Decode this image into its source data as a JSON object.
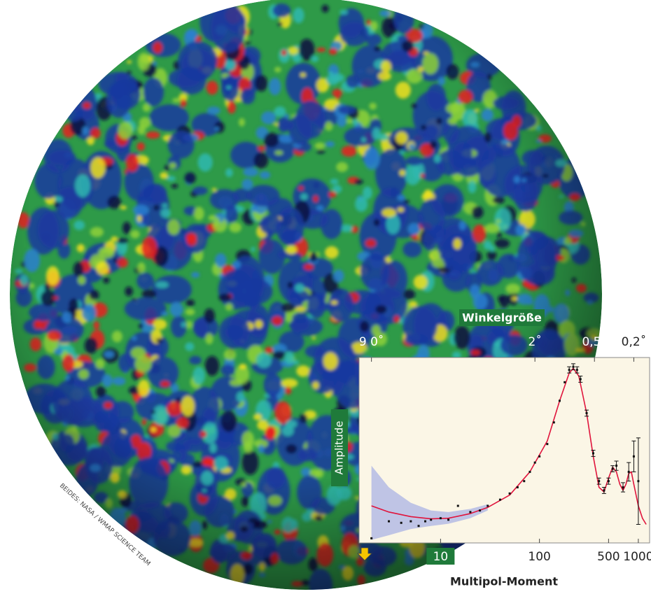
{
  "chart_data": {
    "type": "line",
    "xscale": "log",
    "x_label": "Multipol-Moment",
    "y_label": "Amplitude",
    "x2_label": "Winkelgröße",
    "credit": "BEIDES: NASA / WMAP SCIENCE TEAM",
    "xlim": [
      1.5,
      1300
    ],
    "ylim": [
      0,
      6000
    ],
    "xticks": [
      10,
      100,
      500,
      1000
    ],
    "x2ticks": [
      {
        "value": 2,
        "label": "9 0˚"
      },
      {
        "value": 90,
        "label": "2˚"
      },
      {
        "value": 360,
        "label": "0,5˚"
      },
      {
        "value": 900,
        "label": "0,2˚"
      }
    ],
    "points": {
      "color": "#111111",
      "x": [
        2,
        3,
        4,
        5,
        6,
        7,
        8,
        10,
        12,
        15,
        20,
        25,
        30,
        40,
        50,
        60,
        70,
        80,
        90,
        100,
        120,
        140,
        160,
        180,
        200,
        220,
        240,
        260,
        300,
        350,
        400,
        450,
        500,
        550,
        600,
        700,
        800,
        900,
        1000
      ],
      "values": [
        150,
        700,
        650,
        700,
        550,
        700,
        750,
        800,
        750,
        1200,
        1000,
        1050,
        1200,
        1400,
        1600,
        1800,
        2000,
        2300,
        2600,
        2800,
        3200,
        3900,
        4600,
        5200,
        5600,
        5700,
        5600,
        5300,
        4200,
        2900,
        2000,
        1700,
        2000,
        2400,
        2500,
        1800,
        2300,
        2800,
        2000
      ],
      "errors": [
        0,
        0,
        0,
        0,
        0,
        0,
        0,
        0,
        0,
        0,
        0,
        0,
        0,
        0,
        0,
        0,
        0,
        0,
        0,
        0,
        0,
        0,
        0,
        0,
        100,
        100,
        100,
        100,
        100,
        100,
        100,
        100,
        100,
        100,
        150,
        150,
        300,
        500,
        1400
      ]
    },
    "model": {
      "color": "#e0143c",
      "x": [
        2,
        3,
        5,
        8,
        12,
        20,
        30,
        50,
        80,
        120,
        160,
        200,
        220,
        250,
        300,
        350,
        400,
        450,
        500,
        550,
        600,
        650,
        700,
        750,
        800,
        850,
        900,
        1000,
        1100,
        1200
      ],
      "values": [
        1200,
        1000,
        850,
        780,
        800,
        950,
        1150,
        1550,
        2300,
        3300,
        4600,
        5500,
        5650,
        5400,
        4200,
        2800,
        1800,
        1650,
        2100,
        2450,
        2300,
        1900,
        1700,
        1900,
        2250,
        2300,
        1900,
        1200,
        800,
        600
      ]
    },
    "band": {
      "color": "#b4bbe4",
      "x": [
        2,
        3,
        5,
        8,
        12,
        20,
        30
      ],
      "lower": [
        100,
        250,
        450,
        550,
        620,
        800,
        1050
      ],
      "upper": [
        2500,
        1800,
        1300,
        1050,
        1000,
        1100,
        1250
      ]
    }
  }
}
